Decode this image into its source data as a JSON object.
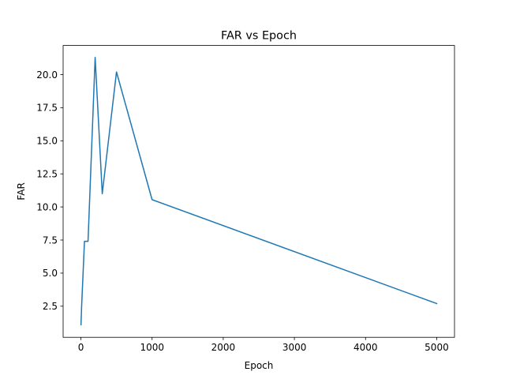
{
  "chart_data": {
    "type": "line",
    "title": "FAR vs Epoch",
    "xlabel": "Epoch",
    "ylabel": "FAR",
    "xlim": [
      -250,
      5250
    ],
    "ylim": [
      0.15,
      22.2
    ],
    "grid": false,
    "x_ticks": [
      0,
      1000,
      2000,
      3000,
      4000,
      5000
    ],
    "y_ticks": [
      2.5,
      5.0,
      7.5,
      10.0,
      12.5,
      15.0,
      17.5,
      20.0
    ],
    "x_tick_labels": [
      "0",
      "1000",
      "2000",
      "3000",
      "4000",
      "5000"
    ],
    "y_tick_labels": [
      "2.5",
      "5.0",
      "7.5",
      "10.0",
      "12.5",
      "15.0",
      "17.5",
      "20.0"
    ],
    "series": [
      {
        "color": "#1f77b4",
        "x": [
          1,
          10,
          50,
          100,
          200,
          300,
          500,
          1000,
          5000
        ],
        "y": [
          1.1,
          2.5,
          7.4,
          7.4,
          21.3,
          11.0,
          20.2,
          10.55,
          2.7
        ]
      }
    ]
  }
}
